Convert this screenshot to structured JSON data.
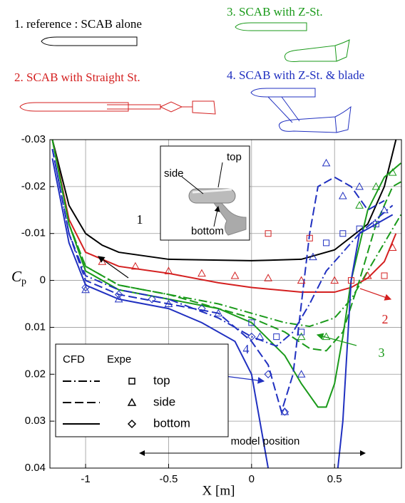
{
  "captions": [
    "1. reference : SCAB alone",
    "2. SCAB with Straight St.",
    "3. SCAB with Z-St.",
    "4. SCAB with Z-St. & blade"
  ],
  "caption_colors": [
    "#000000",
    "#d42020",
    "#1a9a1a",
    "#2030c0"
  ],
  "inset": {
    "labels": [
      "top",
      "side",
      "bottom"
    ]
  },
  "chart_data": {
    "type": "line",
    "x_label": "X [m]",
    "y_label": {
      "symbol": "C",
      "subscript": "p"
    },
    "xlim": [
      -1.215,
      0.903
    ],
    "ylim": [
      -0.03,
      0.04
    ],
    "y_reversed": true,
    "xticks": [
      -1,
      -0.5,
      0,
      0.5
    ],
    "yticks": [
      -0.03,
      -0.02,
      -0.01,
      0,
      0.01,
      0.02,
      0.03,
      0.04
    ],
    "grid": true,
    "series": [
      {
        "color": "#000000",
        "dash": "solid",
        "x": [
          -1.2,
          -1.1,
          -1.0,
          -0.9,
          -0.8,
          -0.5,
          0,
          0.3,
          0.5,
          0.7,
          0.8,
          0.87
        ],
        "values": [
          -0.03,
          -0.016,
          -0.01,
          -0.0075,
          -0.006,
          -0.0045,
          -0.0042,
          -0.0045,
          -0.0065,
          -0.012,
          -0.02,
          -0.03
        ]
      },
      {
        "color": "#d42020",
        "dash": "solid",
        "x": [
          -1.2,
          -1.1,
          -1.0,
          -0.8,
          -0.5,
          -0.2,
          0,
          0.3,
          0.5,
          0.6,
          0.7,
          0.8,
          0.87
        ],
        "values": [
          -0.03,
          -0.013,
          -0.006,
          -0.003,
          -0.0015,
          0.0005,
          0.0015,
          0.0025,
          0.0025,
          0.0015,
          -0.0005,
          -0.004,
          -0.01
        ]
      },
      {
        "color": "#1a9a1a",
        "dash": "dash-dot",
        "x": [
          -1.2,
          -1.1,
          -1.0,
          -0.8,
          -0.5,
          -0.2,
          0,
          0.2,
          0.35,
          0.5,
          0.6,
          0.7,
          0.8,
          0.9
        ],
        "values": [
          -0.03,
          -0.012,
          -0.003,
          0.001,
          0.003,
          0.005,
          0.007,
          0.009,
          0.0098,
          0.008,
          0.004,
          -0.002,
          -0.008,
          -0.014
        ]
      },
      {
        "color": "#1a9a1a",
        "dash": "dashed",
        "x": [
          -1.2,
          -1.1,
          -1.0,
          -0.8,
          -0.5,
          -0.2,
          0,
          0.2,
          0.35,
          0.45,
          0.55,
          0.65,
          0.75,
          0.85,
          0.9
        ],
        "values": [
          -0.03,
          -0.012,
          -0.003,
          0.001,
          0.003,
          0.006,
          0.008,
          0.011,
          0.0145,
          0.015,
          0.011,
          0.0,
          -0.012,
          -0.02,
          -0.021
        ]
      },
      {
        "color": "#1a9a1a",
        "dash": "solid",
        "x": [
          -1.2,
          -1.1,
          -1.0,
          -0.8,
          -0.5,
          -0.2,
          0,
          0.2,
          0.3,
          0.4,
          0.45,
          0.5,
          0.55,
          0.6,
          0.7,
          0.8,
          0.9
        ],
        "values": [
          -0.03,
          -0.012,
          -0.002,
          0.002,
          0.004,
          0.006,
          0.009,
          0.016,
          0.022,
          0.027,
          0.027,
          0.022,
          0.012,
          0.0,
          -0.015,
          -0.022,
          -0.025
        ]
      },
      {
        "color": "#2030c0",
        "dash": "dash-dot",
        "x": [
          -1.2,
          -1.1,
          -1.0,
          -0.8,
          -0.5,
          -0.2,
          0,
          0.15,
          0.25,
          0.35,
          0.45,
          0.55,
          0.65,
          0.75,
          0.85
        ],
        "values": [
          -0.028,
          -0.01,
          -0.001,
          0.002,
          0.004,
          0.008,
          0.012,
          0.014,
          0.011,
          0.005,
          -0.002,
          -0.006,
          -0.01,
          -0.013,
          -0.016
        ]
      },
      {
        "color": "#2030c0",
        "dash": "dashed",
        "x": [
          -1.2,
          -1.1,
          -1.0,
          -0.8,
          -0.5,
          -0.2,
          0,
          0.1,
          0.18,
          0.25,
          0.3,
          0.35,
          0.4,
          0.5,
          0.6,
          0.7,
          0.8
        ],
        "values": [
          -0.028,
          -0.01,
          0.0,
          0.003,
          0.005,
          0.007,
          0.013,
          0.018,
          0.028,
          0.02,
          0.005,
          -0.01,
          -0.02,
          -0.022,
          -0.02,
          -0.015,
          -0.017
        ]
      },
      {
        "color": "#2030c0",
        "dash": "solid",
        "x": [
          -1.2,
          -1.1,
          -1.0,
          -0.8,
          -0.5,
          -0.3,
          -0.1,
          0,
          0.05,
          0.1,
          0.3,
          0.52,
          0.55,
          0.6,
          0.65,
          0.75,
          0.85
        ],
        "values": [
          -0.026,
          -0.008,
          0.001,
          0.004,
          0.006,
          0.009,
          0.013,
          0.02,
          0.03,
          0.04,
          null,
          0.04,
          0.03,
          0.0,
          -0.01,
          -0.012,
          -0.014
        ]
      }
    ],
    "points": [
      {
        "color": "#d42020",
        "marker": "triangle",
        "x": [
          -0.9,
          -0.7,
          -0.5,
          -0.3,
          -0.1,
          0.1,
          0.3,
          0.5,
          0.7,
          0.85
        ],
        "values": [
          -0.004,
          -0.003,
          -0.002,
          -0.0015,
          -0.001,
          -0.0005,
          0.0,
          0.0,
          -0.001,
          -0.007
        ]
      },
      {
        "color": "#d42020",
        "marker": "square",
        "x": [
          0.1,
          0.35,
          0.6,
          0.8
        ],
        "values": [
          -0.01,
          -0.009,
          0.0,
          -0.001
        ]
      },
      {
        "color": "#1a9a1a",
        "marker": "triangle",
        "x": [
          0.3,
          0.45,
          0.65,
          0.75,
          0.85
        ],
        "values": [
          0.012,
          0.012,
          -0.016,
          -0.02,
          -0.023
        ]
      },
      {
        "color": "#2030c0",
        "marker": "triangle",
        "x": [
          -1.0,
          -0.8,
          -0.5,
          -0.2,
          0.05,
          0.2,
          0.3,
          0.37,
          0.45,
          0.55,
          0.65,
          0.8
        ],
        "values": [
          0.002,
          0.004,
          0.005,
          0.007,
          0.012,
          0.028,
          0.02,
          -0.005,
          -0.025,
          -0.018,
          -0.02,
          -0.015
        ]
      },
      {
        "color": "#2030c0",
        "marker": "square",
        "x": [
          0.0,
          0.15,
          0.3,
          0.45,
          0.55,
          0.65,
          0.75
        ],
        "values": [
          0.009,
          0.012,
          0.011,
          -0.008,
          -0.01,
          -0.011,
          -0.012
        ]
      },
      {
        "color": "#2030c0",
        "marker": "diamond",
        "x": [
          -1.0,
          -0.8,
          -0.6,
          -0.3,
          0.0,
          0.1,
          0.2
        ],
        "values": [
          0.0015,
          0.003,
          0.004,
          0.006,
          0.012,
          0.02,
          0.028
        ]
      }
    ],
    "legend": {
      "headers": [
        "CFD",
        "Expe"
      ],
      "entries": [
        {
          "label": "top",
          "dash": "dash-dot",
          "marker": "square"
        },
        {
          "label": "side",
          "dash": "dashed",
          "marker": "triangle"
        },
        {
          "label": "bottom",
          "dash": "solid",
          "marker": "diamond"
        }
      ]
    },
    "annotations": [
      {
        "text": "1",
        "color": "#000000"
      },
      {
        "text": "2",
        "color": "#d42020"
      },
      {
        "text": "3",
        "color": "#1a9a1a"
      },
      {
        "text": "4",
        "color": "#2030c0"
      }
    ],
    "range_label": "model position"
  }
}
